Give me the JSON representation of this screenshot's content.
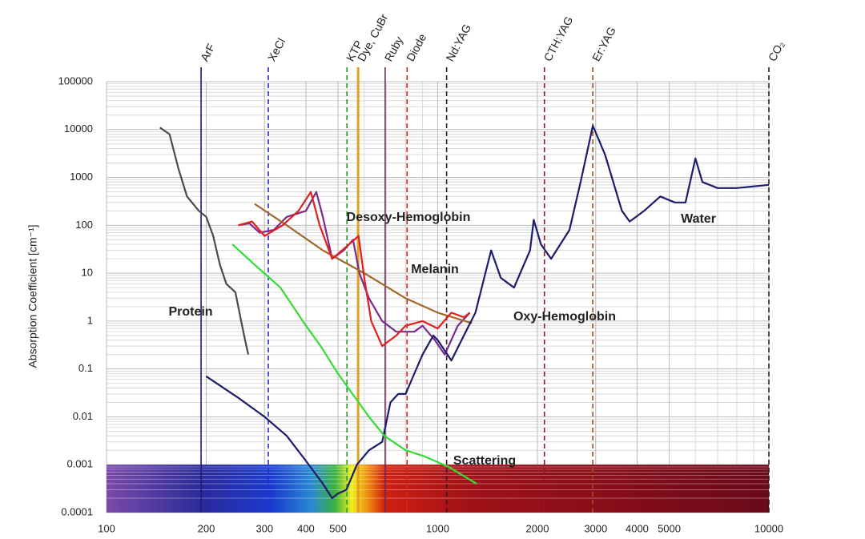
{
  "chart_data": {
    "type": "line",
    "ylabel": "Absorption Coefficient [cm⁻¹]",
    "xscale": "log",
    "yscale": "log",
    "grid": true,
    "xlim": [
      100,
      10000
    ],
    "xticks": [
      100,
      200,
      300,
      400,
      500,
      1000,
      2000,
      3000,
      4000,
      5000,
      10000
    ],
    "ylim": [
      0.0001,
      100000
    ],
    "yticks": [
      100000,
      10000,
      1000,
      100,
      10,
      1,
      0.1,
      0.01,
      0.001,
      0.0001
    ],
    "lasers": [
      {
        "name": "ArF",
        "value": 193,
        "color": "#1c1c6b",
        "style": "solid"
      },
      {
        "name": "XeCl",
        "value": 308,
        "color": "#2a2ad0",
        "style": "dashed"
      },
      {
        "name": "KTP",
        "value": 532,
        "color": "#2a9a2a",
        "style": "dashed"
      },
      {
        "name": "Dye, CuBr",
        "value": 575,
        "color": "#e0a020",
        "style": "solid"
      },
      {
        "name": "Ruby",
        "value": 694,
        "color": "#6a2a5a",
        "style": "solid"
      },
      {
        "name": "Diode",
        "value": 808,
        "color": "#e02020",
        "style": "dashed"
      },
      {
        "name": "Nd:YAG",
        "value": 1064,
        "color": "#3a1a2a",
        "style": "dashed"
      },
      {
        "name": "CTH:YAG",
        "value": 2100,
        "color": "#8a1a2a",
        "style": "dashed"
      },
      {
        "name": "Er:YAG",
        "value": 2940,
        "color": "#a0501a",
        "style": "dashed"
      },
      {
        "name": "CO₂",
        "value": 10000,
        "color": "#222222",
        "style": "dashed"
      }
    ],
    "series": [
      {
        "name": "Protein",
        "color": "#4a4a4a",
        "x": [
          145,
          155,
          165,
          175,
          190,
          200,
          210,
          220,
          230,
          245,
          255,
          262,
          268
        ],
        "values": [
          11000,
          8000,
          1500,
          400,
          200,
          150,
          60,
          15,
          6,
          4,
          1,
          0.4,
          0.2
        ]
      },
      {
        "name": "Desoxy-Hemoglobin",
        "color": "#7a2a8a",
        "x": [
          250,
          270,
          290,
          320,
          350,
          400,
          430,
          450,
          480,
          520,
          555,
          580,
          620,
          680,
          750,
          850,
          900,
          980,
          1050,
          1150,
          1250
        ],
        "values": [
          100,
          110,
          70,
          80,
          150,
          200,
          500,
          150,
          20,
          30,
          50,
          10,
          3,
          1,
          0.6,
          0.6,
          0.8,
          0.4,
          0.2,
          0.8,
          1.5
        ]
      },
      {
        "name": "Melanin",
        "color": "#a0682a",
        "x": [
          280,
          350,
          450,
          600,
          800,
          1000,
          1270
        ],
        "values": [
          280,
          100,
          30,
          10,
          3,
          1.5,
          0.9
        ]
      },
      {
        "name": "Oxy-Hemoglobin",
        "color": "#e02020",
        "x": [
          250,
          275,
          300,
          340,
          380,
          414,
          440,
          480,
          540,
          577,
          600,
          630,
          680,
          750,
          800,
          900,
          1000,
          1100,
          1200,
          1250
        ],
        "values": [
          100,
          120,
          60,
          100,
          200,
          500,
          100,
          20,
          40,
          60,
          8,
          1,
          0.3,
          0.5,
          0.8,
          1,
          0.7,
          1.5,
          1.2,
          1.5
        ]
      },
      {
        "name": "Water",
        "color": "#1c1c6b",
        "x": [
          200,
          250,
          300,
          350,
          400,
          450,
          480,
          500,
          530,
          570,
          620,
          680,
          720,
          760,
          800,
          850,
          900,
          970,
          1000,
          1100,
          1200,
          1300,
          1450,
          1550,
          1700,
          1900,
          1950,
          2050,
          2200,
          2500,
          2700,
          2940,
          3200,
          3600,
          3800,
          4200,
          4700,
          5200,
          5600,
          6000,
          6300,
          7000,
          8000,
          10000
        ],
        "values": [
          0.07,
          0.025,
          0.01,
          0.004,
          0.0012,
          0.0004,
          0.0002,
          0.00025,
          0.0003,
          0.001,
          0.002,
          0.003,
          0.02,
          0.03,
          0.03,
          0.08,
          0.2,
          0.5,
          0.4,
          0.15,
          0.5,
          1.5,
          30,
          8,
          5,
          30,
          130,
          40,
          20,
          80,
          800,
          12000,
          3000,
          200,
          120,
          200,
          400,
          300,
          300,
          2500,
          800,
          600,
          600,
          700
        ]
      },
      {
        "name": "Scattering",
        "color": "#33dd33",
        "x": [
          240,
          280,
          335,
          400,
          443,
          500,
          553,
          620,
          690,
          800,
          910,
          1080,
          1310
        ],
        "values": [
          40,
          15,
          5,
          0.8,
          0.3,
          0.08,
          0.03,
          0.01,
          0.004,
          0.002,
          0.0015,
          0.0009,
          0.0004
        ]
      }
    ]
  }
}
